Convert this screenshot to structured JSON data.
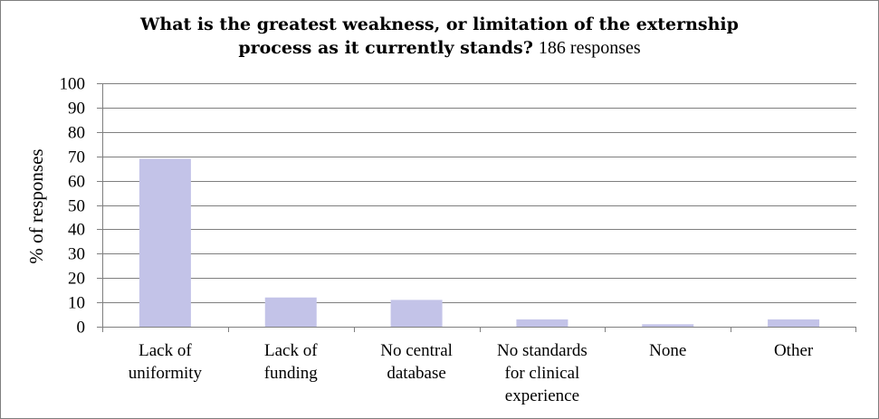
{
  "chart_data": {
    "type": "bar",
    "title": "What is the greatest weakness, or limitation of the externship",
    "title_line2": "process as it currently stands?",
    "subtitle": "186 responses",
    "ylabel": "% of responses",
    "xlabel": "",
    "ylim": [
      0,
      100
    ],
    "yticks": [
      "0",
      "10",
      "20",
      "30",
      "40",
      "50",
      "60",
      "70",
      "80",
      "90",
      "100"
    ],
    "grid": true,
    "categories": [
      [
        "Lack of",
        "uniformity"
      ],
      [
        "Lack of",
        "funding"
      ],
      [
        "No central",
        "database"
      ],
      [
        "No standards",
        "for clinical",
        "experience"
      ],
      [
        "None"
      ],
      [
        "Other"
      ]
    ],
    "values": [
      69,
      12,
      11,
      3,
      1,
      3
    ],
    "colors": {
      "bar": "#c3c3e8",
      "grid": "#7f7f7f",
      "axis": "#7f7f7f"
    }
  }
}
